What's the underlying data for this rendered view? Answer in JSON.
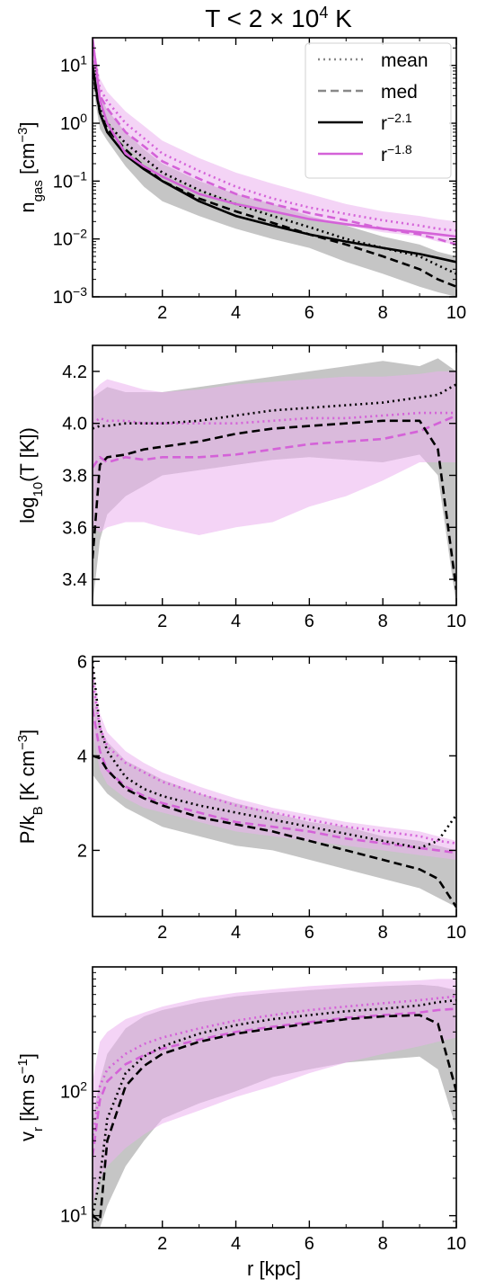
{
  "figure": {
    "title": "T < 2 × 10",
    "title_sup": "4",
    "title_suffix": " K",
    "xlabel": "r [kpc]"
  },
  "colors": {
    "black": "#000000",
    "magenta": "#d462d8",
    "gray_band": "#8c8c8c",
    "magenta_band": "#ebb0ee"
  },
  "legend": [
    {
      "label": "mean",
      "style": "dotted",
      "color": "#888888"
    },
    {
      "label": "med",
      "style": "dashed",
      "color": "#888888"
    },
    {
      "label": "r",
      "sup": "−2.1",
      "style": "solid",
      "color": "#000000"
    },
    {
      "label": "r",
      "sup": "−1.8",
      "style": "solid",
      "color": "#d462d8"
    }
  ],
  "chart_data": [
    {
      "type": "line",
      "ylabel": "n",
      "ylabel_sub": "gas",
      "ylabel_rest": " [cm",
      "ylabel_sup": "−3",
      "ylabel_end": "]",
      "yscale": "log",
      "xlim": [
        0.1,
        10
      ],
      "ylim": [
        0.001,
        30
      ],
      "xticks": [
        2,
        4,
        6,
        8,
        10
      ],
      "yticks": [
        {
          "value": 0.001,
          "base": "10",
          "exp": "−3"
        },
        {
          "value": 0.01,
          "base": "10",
          "exp": "−2"
        },
        {
          "value": 0.1,
          "base": "10",
          "exp": "−1"
        },
        {
          "value": 1,
          "base": "10",
          "exp": "0"
        },
        {
          "value": 10,
          "base": "10",
          "exp": "1"
        }
      ],
      "x": [
        0.1,
        0.3,
        0.5,
        1,
        1.5,
        2,
        3,
        4,
        5,
        6,
        7,
        8,
        9,
        9.5,
        10
      ],
      "bands": [
        {
          "color": "magenta",
          "low": [
            15,
            2,
            1.2,
            0.4,
            0.22,
            0.13,
            0.07,
            0.045,
            0.03,
            0.022,
            0.017,
            0.013,
            0.011,
            0.009,
            0.008
          ],
          "high": [
            30,
            6,
            3.5,
            1.6,
            0.9,
            0.5,
            0.25,
            0.14,
            0.09,
            0.06,
            0.04,
            0.03,
            0.025,
            0.022,
            0.02
          ]
        },
        {
          "color": "black",
          "low": [
            5,
            0.8,
            0.5,
            0.18,
            0.08,
            0.045,
            0.025,
            0.015,
            0.01,
            0.007,
            0.004,
            0.0025,
            0.0015,
            0.0012,
            0.001
          ],
          "high": [
            15,
            3,
            1.7,
            0.7,
            0.35,
            0.2,
            0.1,
            0.06,
            0.04,
            0.025,
            0.017,
            0.011,
            0.008,
            0.006,
            0.005
          ]
        }
      ],
      "series": [
        {
          "name": "mean",
          "color": "magenta",
          "style": "dotted",
          "values": [
            25,
            4,
            2.4,
            1.0,
            0.55,
            0.3,
            0.15,
            0.08,
            0.05,
            0.035,
            0.027,
            0.021,
            0.017,
            0.015,
            0.014
          ]
        },
        {
          "name": "med",
          "color": "magenta",
          "style": "dashed",
          "values": [
            20,
            3,
            1.8,
            0.7,
            0.4,
            0.22,
            0.11,
            0.06,
            0.04,
            0.028,
            0.021,
            0.015,
            0.012,
            0.01,
            0.008
          ]
        },
        {
          "name": "mean",
          "color": "black",
          "style": "dotted",
          "values": [
            9,
            1.8,
            1.0,
            0.45,
            0.25,
            0.14,
            0.07,
            0.04,
            0.025,
            0.016,
            0.01,
            0.007,
            0.005,
            0.0035,
            0.0025
          ]
        },
        {
          "name": "med",
          "color": "black",
          "style": "dashed",
          "values": [
            8,
            1.5,
            0.8,
            0.35,
            0.18,
            0.1,
            0.05,
            0.03,
            0.019,
            0.012,
            0.008,
            0.005,
            0.003,
            0.002,
            0.0015
          ]
        },
        {
          "name": "r^-2.1",
          "color": "black",
          "style": "solid",
          "values": [
            10,
            1.5,
            0.7,
            0.28,
            0.16,
            0.1,
            0.045,
            0.025,
            0.017,
            0.012,
            0.009,
            0.007,
            0.0055,
            0.0047,
            0.004
          ]
        },
        {
          "name": "r^-1.8",
          "color": "magenta",
          "style": "solid",
          "values": [
            30,
            2.5,
            1.0,
            0.3,
            0.18,
            0.12,
            0.06,
            0.04,
            0.03,
            0.022,
            0.018,
            0.015,
            0.013,
            0.012,
            0.011
          ]
        }
      ]
    },
    {
      "type": "line",
      "ylabel": "log",
      "ylabel_sub": "10",
      "ylabel_rest": "(T [K])",
      "ylabel_sup": "",
      "ylabel_end": "",
      "yscale": "linear",
      "xlim": [
        0.1,
        10
      ],
      "ylim": [
        3.3,
        4.3
      ],
      "xticks": [
        2,
        4,
        6,
        8,
        10
      ],
      "yticks": [
        {
          "value": 3.4,
          "label": "3.4"
        },
        {
          "value": 3.6,
          "label": "3.6"
        },
        {
          "value": 3.8,
          "label": "3.8"
        },
        {
          "value": 4.0,
          "label": "4.0"
        },
        {
          "value": 4.2,
          "label": "4.2"
        }
      ],
      "x": [
        0.1,
        0.3,
        0.5,
        1,
        1.5,
        2,
        3,
        4,
        5,
        6,
        7,
        8,
        9,
        9.5,
        10
      ],
      "bands": [
        {
          "color": "magenta",
          "low": [
            3.6,
            3.58,
            3.6,
            3.62,
            3.62,
            3.6,
            3.57,
            3.6,
            3.62,
            3.68,
            3.72,
            3.78,
            3.85,
            3.85,
            3.85
          ],
          "high": [
            4.12,
            4.15,
            4.17,
            4.15,
            4.13,
            4.12,
            4.13,
            4.15,
            4.16,
            4.17,
            4.18,
            4.18,
            4.19,
            4.2,
            4.2
          ]
        },
        {
          "color": "black",
          "low": [
            3.3,
            3.55,
            3.65,
            3.72,
            3.76,
            3.8,
            3.82,
            3.84,
            3.86,
            3.87,
            3.86,
            3.85,
            3.88,
            3.8,
            3.3
          ]
        },
        {
          "color": "black",
          "high": [
            4.1,
            4.12,
            4.14,
            4.12,
            4.12,
            4.12,
            4.14,
            4.16,
            4.18,
            4.2,
            4.22,
            4.24,
            4.22,
            4.25,
            4.2
          ]
        }
      ],
      "series": [
        {
          "name": "mean",
          "color": "magenta",
          "style": "dotted",
          "values": [
            4.0,
            4.02,
            4.01,
            4.01,
            4.0,
            4.0,
            4.0,
            4.0,
            4.01,
            4.02,
            4.02,
            4.03,
            4.04,
            4.04,
            4.04
          ]
        },
        {
          "name": "med",
          "color": "magenta",
          "style": "dashed",
          "values": [
            3.83,
            3.87,
            3.85,
            3.87,
            3.86,
            3.87,
            3.87,
            3.88,
            3.9,
            3.92,
            3.93,
            3.94,
            3.97,
            4.0,
            4.03
          ]
        },
        {
          "name": "mean",
          "color": "black",
          "style": "dotted",
          "values": [
            3.98,
            3.99,
            3.99,
            4.0,
            4.0,
            4.0,
            4.01,
            4.03,
            4.05,
            4.06,
            4.07,
            4.08,
            4.1,
            4.11,
            4.15
          ]
        },
        {
          "name": "med",
          "color": "black",
          "style": "dashed",
          "values": [
            3.48,
            3.84,
            3.87,
            3.88,
            3.9,
            3.91,
            3.93,
            3.96,
            3.98,
            3.99,
            4.0,
            4.01,
            4.01,
            3.9,
            3.36
          ]
        }
      ]
    },
    {
      "type": "line",
      "ylabel": "P/k",
      "ylabel_sub": "B",
      "ylabel_rest": " [K cm",
      "ylabel_sup": "−3",
      "ylabel_end": "]",
      "yscale": "linear",
      "xlim": [
        0.1,
        10
      ],
      "ylim": [
        0.6,
        6.1
      ],
      "xticks": [
        2,
        4,
        6,
        8,
        10
      ],
      "yticks": [
        {
          "value": 2,
          "label": "2"
        },
        {
          "value": 4,
          "label": "4"
        },
        {
          "value": 6,
          "label": "6"
        }
      ],
      "x": [
        0.1,
        0.3,
        0.5,
        1,
        1.5,
        2,
        3,
        4,
        5,
        6,
        7,
        8,
        9,
        9.5,
        10
      ],
      "bands": [
        {
          "color": "magenta",
          "low": [
            4.5,
            3.7,
            3.4,
            3.1,
            2.9,
            2.8,
            2.6,
            2.4,
            2.3,
            2.2,
            2.1,
            2.0,
            1.9,
            1.85,
            1.8
          ]
        },
        {
          "color": "magenta",
          "high": [
            6.0,
            4.9,
            4.5,
            4.1,
            3.85,
            3.65,
            3.35,
            3.1,
            2.9,
            2.75,
            2.6,
            2.5,
            2.4,
            2.3,
            2.2
          ]
        },
        {
          "color": "black",
          "low": [
            3.6,
            3.4,
            3.2,
            2.9,
            2.7,
            2.5,
            2.3,
            2.1,
            2.0,
            1.8,
            1.6,
            1.4,
            1.2,
            1.0,
            0.8
          ]
        },
        {
          "color": "black",
          "high": [
            5.5,
            4.6,
            4.3,
            3.9,
            3.7,
            3.5,
            3.2,
            3.0,
            2.8,
            2.6,
            2.5,
            2.3,
            2.2,
            2.1,
            2.0
          ]
        }
      ],
      "series": [
        {
          "name": "mean",
          "color": "magenta",
          "style": "dotted",
          "values": [
            5.6,
            4.6,
            4.2,
            3.85,
            3.65,
            3.45,
            3.2,
            2.95,
            2.8,
            2.65,
            2.5,
            2.4,
            2.3,
            2.2,
            2.15
          ]
        },
        {
          "name": "med",
          "color": "magenta",
          "style": "dashed",
          "values": [
            5.0,
            4.1,
            3.7,
            3.35,
            3.15,
            3.0,
            2.8,
            2.6,
            2.5,
            2.4,
            2.25,
            2.15,
            2.05,
            2.0,
            1.95
          ]
        },
        {
          "name": "mean",
          "color": "black",
          "style": "dotted",
          "values": [
            6.0,
            4.6,
            4.1,
            3.55,
            3.3,
            3.15,
            2.95,
            2.8,
            2.65,
            2.5,
            2.35,
            2.2,
            2.05,
            2.2,
            2.75
          ]
        },
        {
          "name": "med",
          "color": "black",
          "style": "dashed",
          "values": [
            4.0,
            3.95,
            3.7,
            3.3,
            3.1,
            2.95,
            2.7,
            2.55,
            2.4,
            2.2,
            2.0,
            1.8,
            1.6,
            1.4,
            0.8
          ]
        }
      ]
    },
    {
      "type": "line",
      "ylabel": "v",
      "ylabel_sub": "r",
      "ylabel_rest": " [km s",
      "ylabel_sup": "−1",
      "ylabel_end": "]",
      "yscale": "log",
      "xlim": [
        0.1,
        10
      ],
      "ylim": [
        8,
        1000
      ],
      "xticks": [
        2,
        4,
        6,
        8,
        10
      ],
      "yticks": [
        {
          "value": 10,
          "base": "10",
          "exp": "1"
        },
        {
          "value": 100,
          "base": "10",
          "exp": "2"
        }
      ],
      "x": [
        0.1,
        0.3,
        0.5,
        1,
        1.5,
        2,
        3,
        4,
        5,
        6,
        7,
        8,
        9,
        9.5,
        10
      ],
      "bands": [
        {
          "color": "magenta",
          "low": [
            12,
            20,
            25,
            35,
            45,
            55,
            70,
            90,
            110,
            140,
            170,
            200,
            230,
            250,
            270
          ]
        },
        {
          "color": "magenta",
          "high": [
            120,
            250,
            300,
            380,
            430,
            480,
            560,
            620,
            660,
            700,
            730,
            760,
            780,
            800,
            800
          ]
        },
        {
          "color": "black",
          "low": [
            8,
            8,
            12,
            25,
            40,
            60,
            80,
            100,
            130,
            150,
            170,
            180,
            190,
            150,
            50
          ]
        },
        {
          "color": "black",
          "high": [
            60,
            120,
            200,
            320,
            400,
            450,
            520,
            580,
            620,
            650,
            680,
            700,
            720,
            700,
            650
          ]
        }
      ],
      "series": [
        {
          "name": "mean",
          "color": "magenta",
          "style": "dotted",
          "values": [
            40,
            110,
            150,
            200,
            240,
            270,
            320,
            370,
            410,
            450,
            480,
            510,
            540,
            560,
            580
          ]
        },
        {
          "name": "med",
          "color": "magenta",
          "style": "dashed",
          "values": [
            30,
            85,
            120,
            165,
            195,
            220,
            260,
            300,
            330,
            360,
            390,
            410,
            430,
            450,
            460
          ]
        },
        {
          "name": "mean",
          "color": "black",
          "style": "dotted",
          "values": [
            10,
            20,
            60,
            140,
            190,
            230,
            290,
            340,
            380,
            410,
            440,
            460,
            490,
            520,
            540
          ]
        },
        {
          "name": "med",
          "color": "black",
          "style": "dashed",
          "values": [
            10,
            9,
            40,
            110,
            160,
            200,
            250,
            290,
            320,
            350,
            380,
            400,
            410,
            350,
            100
          ]
        }
      ]
    }
  ]
}
